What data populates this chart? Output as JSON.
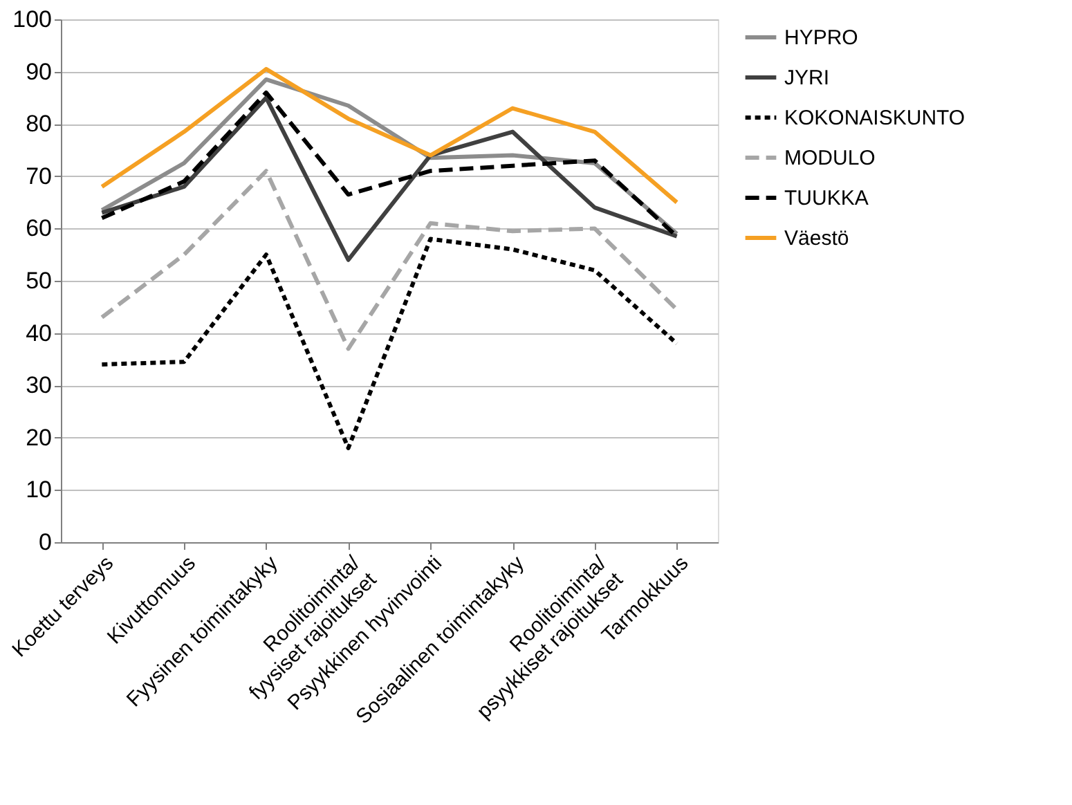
{
  "chart_data": {
    "type": "line",
    "categories": [
      "Koettu terveys",
      "Kivuttomuus",
      "Fyysinen toimintakyky",
      "Roolitoiminta/\nfyysiset rajoitukset",
      "Psyykkinen hyvinvointi",
      "Sosiaalinen toimintakyky",
      "Roolitoiminta/\npsyykkiset rajoitukset",
      "Tarmokkuus"
    ],
    "series": [
      {
        "name": "HYPRO",
        "color": "#8c8c8c",
        "line_style": "solid",
        "values": [
          63.5,
          72.5,
          88.5,
          83.5,
          73.5,
          74,
          72.5,
          59
        ]
      },
      {
        "name": "JYRI",
        "color": "#404040",
        "line_style": "solid",
        "values": [
          63,
          68,
          85,
          54,
          74,
          78.5,
          64,
          58.5
        ]
      },
      {
        "name": "KOKONAISKUNTO",
        "color": "#000000",
        "line_style": "dotted",
        "values": [
          34,
          34.5,
          55,
          18,
          58,
          56,
          52,
          38
        ]
      },
      {
        "name": "MODULO",
        "color": "#a6a6a6",
        "line_style": "dashed",
        "values": [
          43,
          55,
          71,
          37,
          61,
          59.5,
          60,
          44.5
        ]
      },
      {
        "name": "TUUKKA",
        "color": "#000000",
        "line_style": "dashed",
        "values": [
          62,
          69,
          86,
          66.5,
          71,
          72,
          73,
          58.5
        ]
      },
      {
        "name": "Väestö",
        "color": "#f5a023",
        "line_style": "solid",
        "values": [
          68,
          78.5,
          90.5,
          81,
          74,
          83,
          78.5,
          65
        ]
      }
    ],
    "ylim": [
      0,
      100
    ],
    "yticks": [
      0,
      10,
      20,
      30,
      40,
      50,
      60,
      70,
      80,
      90,
      100
    ],
    "grid": "y",
    "legend": "right",
    "marker": "none"
  }
}
